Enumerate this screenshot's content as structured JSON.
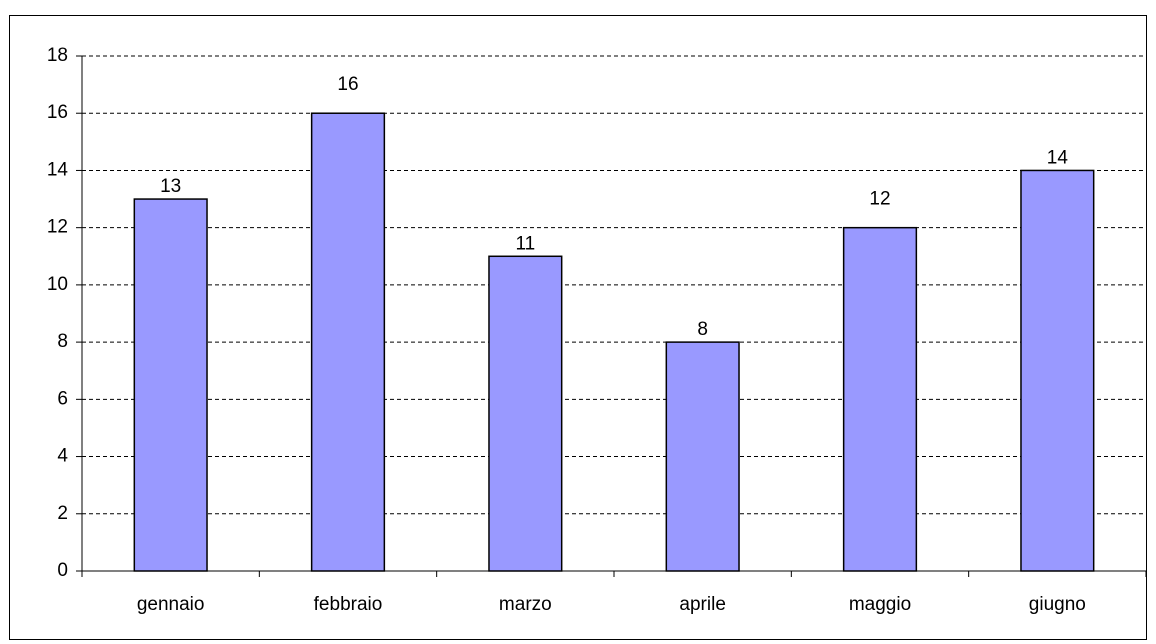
{
  "chart_data": {
    "type": "bar",
    "categories": [
      "gennaio",
      "febbraio",
      "marzo",
      "aprile",
      "maggio",
      "giugno"
    ],
    "values": [
      13,
      16,
      11,
      8,
      12,
      14
    ],
    "color": "#9999ff",
    "ylim": [
      0,
      18
    ],
    "yticks": [
      0,
      2,
      4,
      6,
      8,
      10,
      12,
      14,
      16,
      18
    ],
    "grid": true
  }
}
